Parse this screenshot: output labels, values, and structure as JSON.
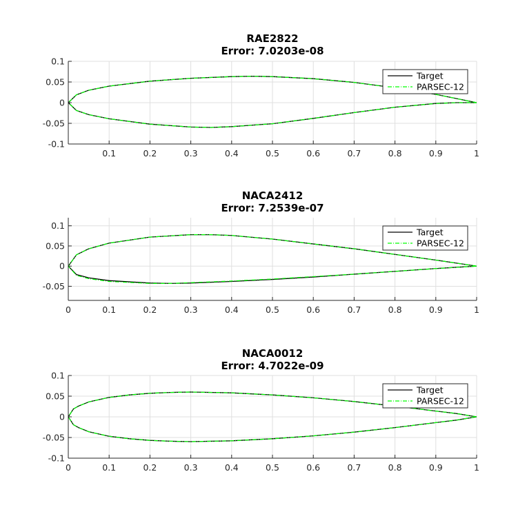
{
  "chart_data": [
    {
      "type": "line",
      "title": "RAE2822",
      "subtitle": "Error: 7.0203e-08",
      "xlim": [
        0,
        1
      ],
      "ylim": [
        -0.1,
        0.1
      ],
      "xticks": [
        0.1,
        0.2,
        0.3,
        0.4,
        0.5,
        0.6,
        0.7,
        0.8,
        0.9,
        1
      ],
      "xtick_labels": [
        "0.1",
        "0.2",
        "0.3",
        "0.4",
        "0.5",
        "0.6",
        "0.7",
        "0.8",
        "0.9",
        "1"
      ],
      "yticks": [
        0.1,
        0.05,
        0,
        -0.05,
        -0.1
      ],
      "ytick_labels": [
        "0.1",
        "0.05",
        "0",
        "-0.05",
        "-0.1"
      ],
      "grid": true,
      "legend_placement": "top-right",
      "series": [
        {
          "name": "Target",
          "color": "#000000",
          "style": "solid",
          "x": [
            1,
            0.95,
            0.9,
            0.8,
            0.7,
            0.6,
            0.5,
            0.45,
            0.4,
            0.3,
            0.2,
            0.1,
            0.05,
            0.02,
            0,
            0.02,
            0.05,
            0.1,
            0.2,
            0.3,
            0.35,
            0.4,
            0.5,
            0.6,
            0.7,
            0.8,
            0.9,
            0.95,
            1
          ],
          "y": [
            0,
            0.01,
            0.02,
            0.036,
            0.049,
            0.058,
            0.063,
            0.064,
            0.063,
            0.059,
            0.052,
            0.04,
            0.03,
            0.019,
            0,
            -0.019,
            -0.029,
            -0.039,
            -0.052,
            -0.059,
            -0.06,
            -0.058,
            -0.051,
            -0.038,
            -0.024,
            -0.011,
            -0.002,
            0,
            0
          ]
        },
        {
          "name": "PARSEC-12",
          "color": "#00ff00",
          "style": "dashdot",
          "x": [
            1,
            0.95,
            0.9,
            0.8,
            0.7,
            0.6,
            0.5,
            0.45,
            0.4,
            0.3,
            0.2,
            0.1,
            0.05,
            0.02,
            0,
            0.02,
            0.05,
            0.1,
            0.2,
            0.3,
            0.35,
            0.4,
            0.5,
            0.6,
            0.7,
            0.8,
            0.9,
            0.95,
            1
          ],
          "y": [
            0,
            0.01,
            0.02,
            0.036,
            0.049,
            0.058,
            0.063,
            0.064,
            0.063,
            0.059,
            0.052,
            0.04,
            0.03,
            0.019,
            0,
            -0.019,
            -0.029,
            -0.039,
            -0.052,
            -0.059,
            -0.06,
            -0.058,
            -0.051,
            -0.038,
            -0.024,
            -0.011,
            -0.002,
            0,
            0
          ]
        }
      ]
    },
    {
      "type": "line",
      "title": "NACA2412",
      "subtitle": "Error: 7.2539e-07",
      "xlim": [
        0,
        1
      ],
      "ylim": [
        -0.085,
        0.12
      ],
      "xticks": [
        0,
        0.1,
        0.2,
        0.3,
        0.4,
        0.5,
        0.6,
        0.7,
        0.8,
        0.9,
        1
      ],
      "xtick_labels": [
        "0",
        "0.1",
        "0.2",
        "0.3",
        "0.4",
        "0.5",
        "0.6",
        "0.7",
        "0.8",
        "0.9",
        "1"
      ],
      "yticks": [
        0.1,
        0.05,
        0,
        -0.05
      ],
      "ytick_labels": [
        "0.1",
        "0.05",
        "0",
        "-0.05"
      ],
      "grid": true,
      "legend_placement": "top-right",
      "series": [
        {
          "name": "Target",
          "color": "#000000",
          "style": "solid",
          "x": [
            1,
            0.9,
            0.8,
            0.7,
            0.6,
            0.5,
            0.4,
            0.35,
            0.3,
            0.2,
            0.1,
            0.05,
            0.02,
            0,
            0.02,
            0.05,
            0.1,
            0.2,
            0.25,
            0.3,
            0.4,
            0.5,
            0.6,
            0.7,
            0.8,
            0.9,
            1
          ],
          "y": [
            0,
            0.015,
            0.029,
            0.043,
            0.055,
            0.067,
            0.076,
            0.078,
            0.078,
            0.072,
            0.057,
            0.043,
            0.028,
            0,
            -0.021,
            -0.029,
            -0.036,
            -0.042,
            -0.043,
            -0.042,
            -0.038,
            -0.033,
            -0.027,
            -0.02,
            -0.013,
            -0.006,
            0
          ]
        },
        {
          "name": "PARSEC-12",
          "color": "#00ff00",
          "style": "dashdot",
          "x": [
            1,
            0.9,
            0.8,
            0.7,
            0.6,
            0.5,
            0.4,
            0.35,
            0.3,
            0.2,
            0.1,
            0.05,
            0.02,
            0,
            0.02,
            0.05,
            0.1,
            0.2,
            0.25,
            0.3,
            0.4,
            0.5,
            0.6,
            0.7,
            0.8,
            0.9,
            1
          ],
          "y": [
            0,
            0.015,
            0.029,
            0.043,
            0.055,
            0.067,
            0.076,
            0.078,
            0.078,
            0.072,
            0.057,
            0.043,
            0.028,
            0,
            -0.023,
            -0.031,
            -0.038,
            -0.043,
            -0.043,
            -0.041,
            -0.037,
            -0.032,
            -0.026,
            -0.02,
            -0.013,
            -0.006,
            0
          ]
        }
      ]
    },
    {
      "type": "line",
      "title": "NACA0012",
      "subtitle": "Error: 4.7022e-09",
      "xlim": [
        0,
        1
      ],
      "ylim": [
        -0.1,
        0.1
      ],
      "xticks": [
        0,
        0.1,
        0.2,
        0.3,
        0.4,
        0.5,
        0.6,
        0.7,
        0.8,
        0.9,
        1
      ],
      "xtick_labels": [
        "0",
        "0.1",
        "0.2",
        "0.3",
        "0.4",
        "0.5",
        "0.6",
        "0.7",
        "0.8",
        "0.9",
        "1"
      ],
      "yticks": [
        0.1,
        0.05,
        0,
        -0.05,
        -0.1
      ],
      "ytick_labels": [
        "0.1",
        "0.05",
        "0",
        "-0.05",
        "-0.1"
      ],
      "grid": true,
      "legend_placement": "top-right",
      "series": [
        {
          "name": "Target",
          "color": "#000000",
          "style": "solid",
          "x": [
            1,
            0.95,
            0.9,
            0.8,
            0.7,
            0.6,
            0.5,
            0.4,
            0.3,
            0.25,
            0.2,
            0.15,
            0.1,
            0.05,
            0.025,
            0.0125,
            0,
            0.0125,
            0.025,
            0.05,
            0.1,
            0.15,
            0.2,
            0.25,
            0.3,
            0.4,
            0.5,
            0.6,
            0.7,
            0.8,
            0.9,
            0.95,
            1
          ],
          "y": [
            0,
            0.008,
            0.014,
            0.026,
            0.037,
            0.046,
            0.053,
            0.058,
            0.06,
            0.059,
            0.057,
            0.053,
            0.047,
            0.036,
            0.026,
            0.019,
            0,
            -0.019,
            -0.026,
            -0.036,
            -0.047,
            -0.053,
            -0.057,
            -0.059,
            -0.06,
            -0.058,
            -0.053,
            -0.046,
            -0.037,
            -0.026,
            -0.014,
            -0.008,
            0
          ]
        },
        {
          "name": "PARSEC-12",
          "color": "#00ff00",
          "style": "dashdot",
          "x": [
            1,
            0.95,
            0.9,
            0.8,
            0.7,
            0.6,
            0.5,
            0.4,
            0.3,
            0.25,
            0.2,
            0.15,
            0.1,
            0.05,
            0.025,
            0.0125,
            0,
            0.0125,
            0.025,
            0.05,
            0.1,
            0.15,
            0.2,
            0.25,
            0.3,
            0.4,
            0.5,
            0.6,
            0.7,
            0.8,
            0.9,
            0.95,
            1
          ],
          "y": [
            0,
            0.008,
            0.014,
            0.026,
            0.037,
            0.046,
            0.053,
            0.058,
            0.06,
            0.059,
            0.057,
            0.053,
            0.047,
            0.036,
            0.026,
            0.019,
            0,
            -0.019,
            -0.026,
            -0.036,
            -0.047,
            -0.053,
            -0.057,
            -0.059,
            -0.06,
            -0.058,
            -0.053,
            -0.046,
            -0.037,
            -0.026,
            -0.014,
            -0.008,
            0
          ]
        }
      ]
    }
  ]
}
